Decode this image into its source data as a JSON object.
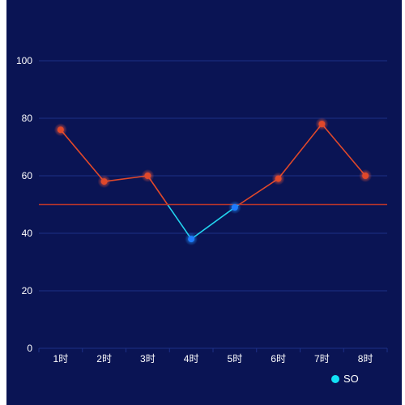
{
  "chart_data": {
    "type": "line",
    "categories": [
      "1时",
      "2时",
      "3时",
      "4时",
      "5时",
      "6时",
      "7时",
      "8时"
    ],
    "series": [
      {
        "name": "SO",
        "values": [
          76,
          58,
          60,
          38,
          49,
          59,
          78,
          60
        ]
      }
    ],
    "ylim": [
      0,
      100
    ],
    "yticks": [
      0,
      20,
      40,
      60,
      80,
      100
    ],
    "threshold": 50,
    "grid": true,
    "legend_position": "bottom-right",
    "colors": {
      "background": "#0a1454",
      "grid": "#1c2f86",
      "above_threshold": "#e0482a",
      "below_threshold": "#22d3ee",
      "threshold_line": "#b8352a",
      "legend_marker": "#12e0f5",
      "text": "#ffffff"
    }
  }
}
